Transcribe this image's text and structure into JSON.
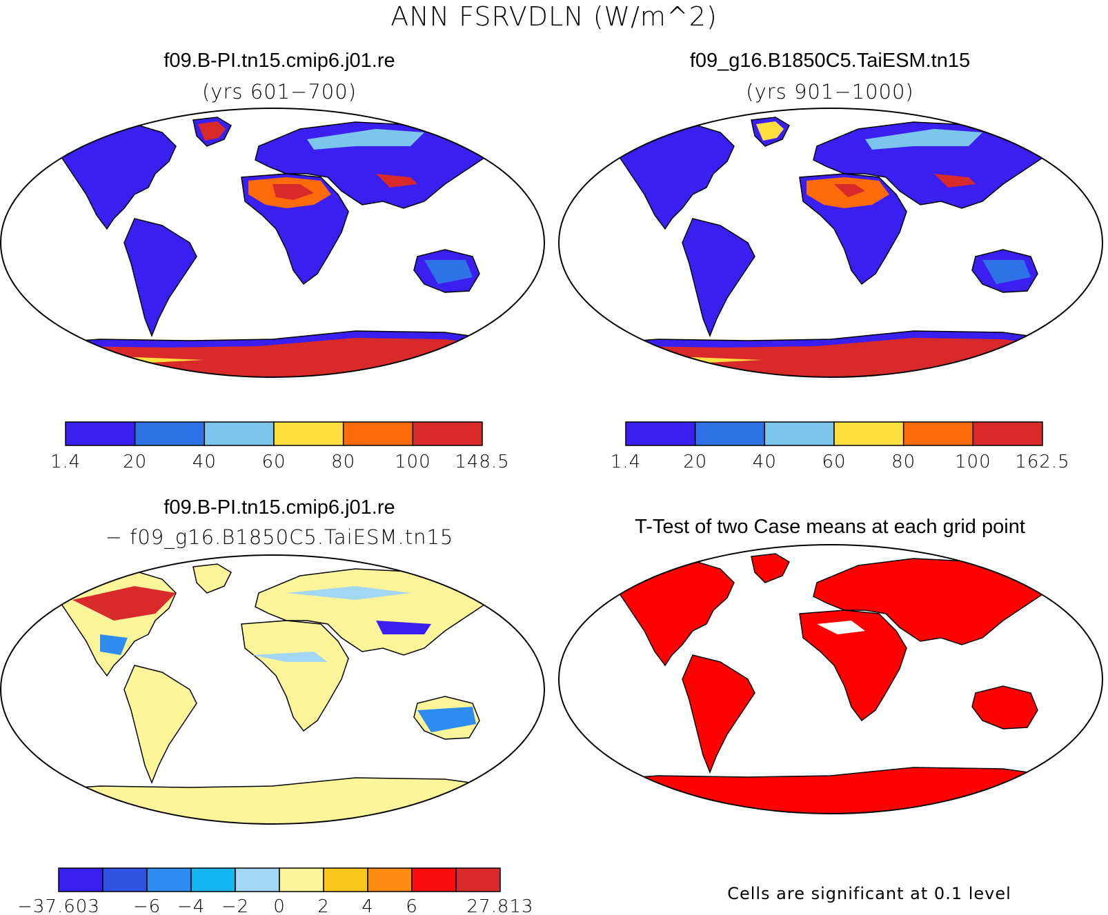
{
  "figure": {
    "title": "ANN FSRVDLN (W/m^2)"
  },
  "chart_data": [
    {
      "type": "heatmap",
      "title": "f09.B-PI.tn15.cmip6.j01.re",
      "subtitle": "(yrs 601−700)",
      "projection": "robinson world map",
      "colorbar": {
        "ticks": [
          "1.4",
          "20",
          "40",
          "60",
          "80",
          "100",
          "148.5"
        ],
        "colors": [
          "#3a1ff0",
          "#2e72e6",
          "#7cc6ee",
          "#fde040",
          "#fc6a0a",
          "#d8292b"
        ]
      }
    },
    {
      "type": "heatmap",
      "title": "f09_g16.B1850C5.TaiESM.tn15",
      "subtitle": "(yrs 901−1000)",
      "projection": "robinson world map",
      "colorbar": {
        "ticks": [
          "1.4",
          "20",
          "40",
          "60",
          "80",
          "100",
          "162.5"
        ],
        "colors": [
          "#3a1ff0",
          "#2e72e6",
          "#7cc6ee",
          "#fde040",
          "#fc6a0a",
          "#d8292b"
        ]
      }
    },
    {
      "type": "heatmap",
      "title": "f09.B-PI.tn15.cmip6.j01.re",
      "subtitle": "− f09_g16.B1850C5.TaiESM.tn15",
      "projection": "robinson world map",
      "colorbar": {
        "ticks": [
          "−37.603",
          "",
          "−6",
          "−4",
          "−2",
          "0",
          "2",
          "4",
          "6",
          "",
          "27.813"
        ],
        "colors": [
          "#3a1ff0",
          "#2d53e0",
          "#2e8cf0",
          "#16b6f2",
          "#a3d6f0",
          "#fdf59a",
          "#fdc61c",
          "#fc8c10",
          "#fb0d0d",
          "#d8292b"
        ]
      }
    },
    {
      "type": "heatmap",
      "title": "T-Test of two Case means at each grid point",
      "projection": "robinson world map",
      "note": "Cells are significant at 0.1 level",
      "colors": {
        "significant": "#ff0000"
      }
    }
  ]
}
